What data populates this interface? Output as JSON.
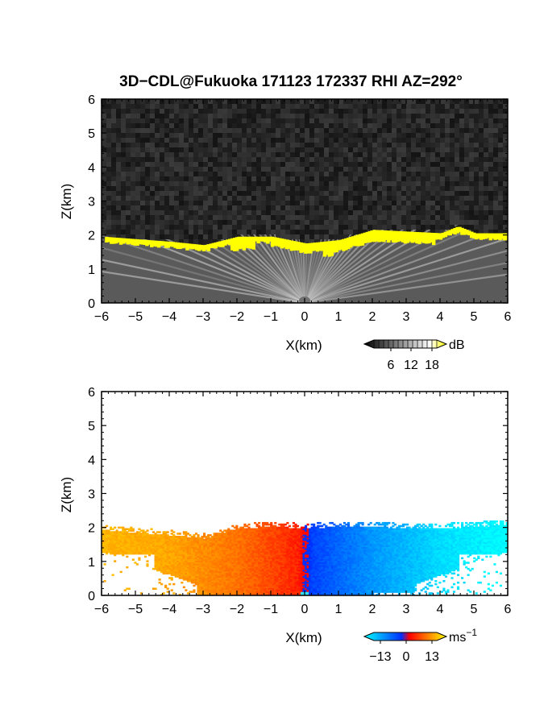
{
  "chart_data": [
    {
      "type": "heatmap",
      "title": "3D−CDL@Fukuoka 171123 172337 RHI AZ=292°",
      "xlabel": "X(km)",
      "ylabel": "Z(km)",
      "xlim": [
        -6,
        6
      ],
      "ylim": [
        0,
        6
      ],
      "x_ticks": [
        "−6",
        "−5",
        "−4",
        "−3",
        "−2",
        "−1",
        "0",
        "1",
        "2",
        "3",
        "4",
        "5",
        "6"
      ],
      "y_ticks": [
        "0",
        "1",
        "2",
        "3",
        "4",
        "5",
        "6"
      ],
      "grid": false,
      "variable": "SNR",
      "colorbar": {
        "unit": "dB",
        "ticks": [
          "6",
          "12",
          "18"
        ],
        "range": [
          0,
          20
        ],
        "colors": [
          "#000000",
          "#ffffff",
          "#ffff00"
        ]
      },
      "field_description_points": {
        "boundary_layer_top_km_at_x": {
          "x": [
            -6,
            -4,
            -3,
            -2,
            -1,
            0,
            1,
            2,
            3,
            4,
            4.5,
            5,
            6
          ],
          "z": [
            1.9,
            1.75,
            1.65,
            1.9,
            1.9,
            1.7,
            1.8,
            2.1,
            2.05,
            2.0,
            2.2,
            2.0,
            2.0
          ]
        }
      }
    },
    {
      "type": "heatmap",
      "title": "",
      "xlabel": "X(km)",
      "ylabel": "Z(km)",
      "xlim": [
        -6,
        6
      ],
      "ylim": [
        0,
        6
      ],
      "x_ticks": [
        "−6",
        "−5",
        "−4",
        "−3",
        "−2",
        "−1",
        "0",
        "1",
        "2",
        "3",
        "4",
        "5",
        "6"
      ],
      "y_ticks": [
        "0",
        "1",
        "2",
        "3",
        "4",
        "5",
        "6"
      ],
      "grid": false,
      "variable": "radial velocity",
      "colorbar": {
        "unit": "ms",
        "unit_sup": "−1",
        "ticks": [
          "−13",
          "0",
          "13"
        ],
        "range": [
          -13,
          13
        ],
        "colors": [
          "#00ffff",
          "#0040ff",
          "#ff0000",
          "#ffff00"
        ]
      },
      "field_description_points": {
        "velocity_at_x": {
          "x": [
            -6,
            -4,
            -2,
            -0.2,
            0.2,
            2,
            4,
            6
          ],
          "v": [
            10,
            9,
            6,
            2,
            -2,
            -7,
            -11,
            -13
          ]
        }
      }
    }
  ]
}
